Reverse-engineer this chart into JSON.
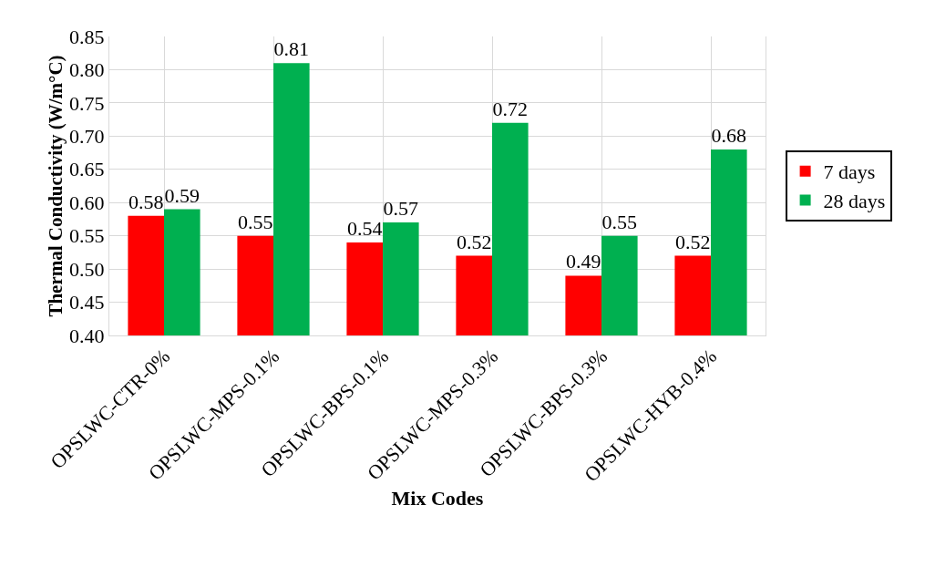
{
  "chart_data": {
    "type": "bar",
    "xlabel": "Mix Codes",
    "ylabel": "Thermal Conductivity (W/m°C)",
    "categories": [
      "OPSLWC-CTR-0%",
      "OPSLWC-MPS-0.1%",
      "OPSLWC-BPS-0.1%",
      "OPSLWC-MPS-0.3%",
      "OPSLWC-BPS-0.3%",
      "OPSLWC-HYB-0.4%"
    ],
    "series": [
      {
        "name": "7 days",
        "color": "#ff0000",
        "values": [
          0.58,
          0.55,
          0.54,
          0.52,
          0.49,
          0.52
        ]
      },
      {
        "name": "28 days",
        "color": "#00b050",
        "values": [
          0.59,
          0.81,
          0.57,
          0.72,
          0.55,
          0.68
        ]
      }
    ],
    "ylim": [
      0.4,
      0.85
    ],
    "yticks": [
      {
        "value": 0.4,
        "label": "0.40"
      },
      {
        "value": 0.45,
        "label": "0.45"
      },
      {
        "value": 0.5,
        "label": "0.50"
      },
      {
        "value": 0.55,
        "label": "0.55"
      },
      {
        "value": 0.6,
        "label": "0.60"
      },
      {
        "value": 0.65,
        "label": "0.65"
      },
      {
        "value": 0.7,
        "label": "0.70"
      },
      {
        "value": 0.75,
        "label": "0.75"
      },
      {
        "value": 0.8,
        "label": "0.80"
      },
      {
        "value": 0.85,
        "label": "0.85"
      }
    ],
    "grid": true,
    "legend": "right",
    "data_labels": true
  }
}
